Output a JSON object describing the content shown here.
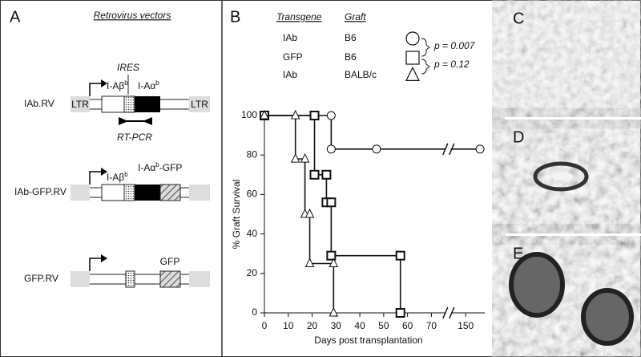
{
  "panel_a": {
    "label": "A",
    "title": "Retrovirus vectors",
    "ires": "IRES",
    "rt_pcr": "RT-PCR",
    "ltr_left": "LTR",
    "ltr_right": "LTR",
    "constructs": [
      {
        "name": "IAb.RV",
        "beta": {
          "text": "I-Aβ",
          "sup": "b"
        },
        "alpha": {
          "text": "I-Aα",
          "sup": "b"
        }
      },
      {
        "name": "IAb-GFP.RV",
        "beta": {
          "text": "I-Aβ",
          "sup": "b"
        },
        "alpha": {
          "text": "I-Aα",
          "sup": "b",
          "after": "-GFP"
        }
      },
      {
        "name": "GFP.RV",
        "gfp": "GFP"
      }
    ]
  },
  "chart_data": {
    "type": "line",
    "panel_label": "B",
    "headers": [
      "Transgene",
      "Graft"
    ],
    "xlabel": "Days post transplantation",
    "ylabel": "% Graft Survival",
    "xlim": [
      0,
      158
    ],
    "xbreak": [
      75,
      145
    ],
    "xticks": [
      0,
      10,
      20,
      30,
      40,
      50,
      60,
      70,
      150
    ],
    "ylim": [
      0,
      100
    ],
    "yticks": [
      0,
      20,
      40,
      60,
      80,
      100
    ],
    "grid": false,
    "annotations": [
      "p = 0.007",
      "p = 0.12"
    ],
    "series": [
      {
        "transgene": "IAb",
        "graft": "B6",
        "marker": "circle",
        "color": "#111111",
        "x": [
          0,
          28,
          28,
          47,
          156
        ],
        "values": [
          100,
          100,
          83,
          83,
          83
        ]
      },
      {
        "transgene": "GFP",
        "graft": "B6",
        "marker": "square",
        "color": "#111111",
        "x": [
          0,
          21,
          21,
          26,
          26,
          28,
          28,
          57,
          57
        ],
        "values": [
          100,
          100,
          70,
          70,
          56,
          56,
          29,
          29,
          0
        ]
      },
      {
        "transgene": "IAb",
        "graft": "BALB/c",
        "marker": "triangle",
        "color": "#111111",
        "x": [
          0,
          13,
          13,
          17,
          17,
          19,
          19,
          29,
          29
        ],
        "values": [
          100,
          100,
          78,
          78,
          50,
          50,
          25,
          25,
          0
        ]
      }
    ]
  },
  "panels_right": [
    {
      "label": "C"
    },
    {
      "label": "D"
    },
    {
      "label": "E"
    }
  ]
}
